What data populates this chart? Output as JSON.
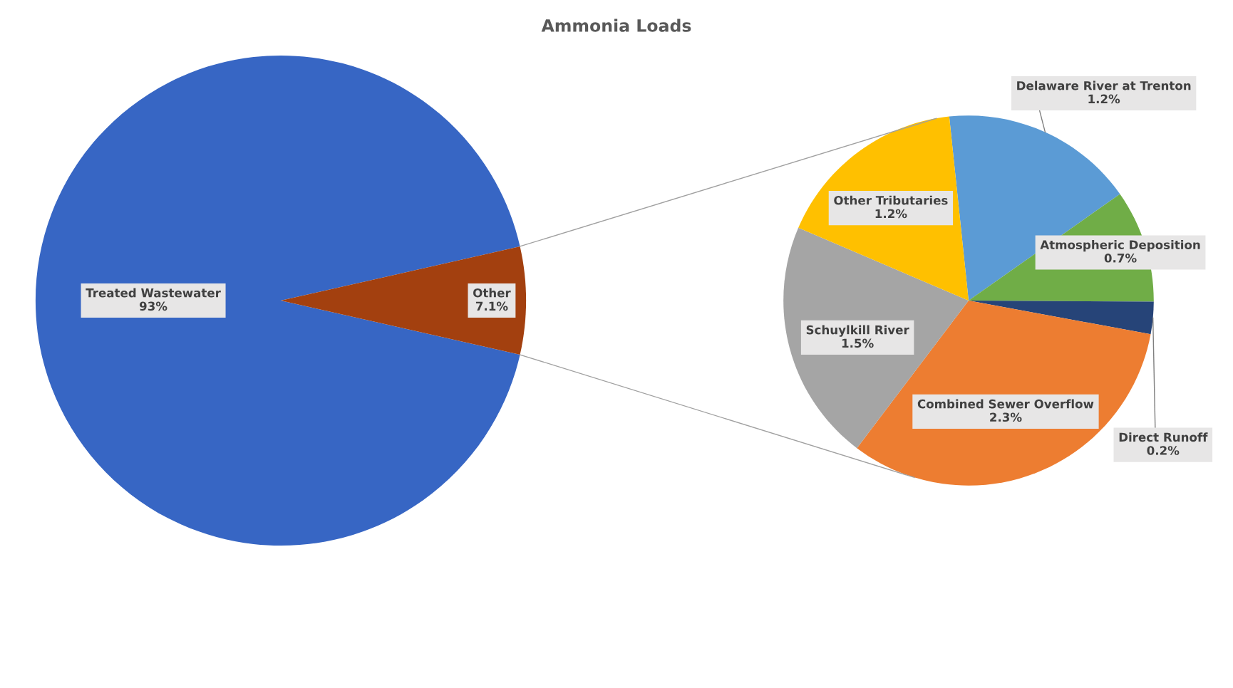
{
  "chart_data": [
    {
      "type": "pie",
      "title": "Ammonia Loads",
      "categories": [
        "Treated Wastewater",
        "Other"
      ],
      "values": [
        93,
        7.1
      ],
      "colors": [
        "#3766c4",
        "#a3400f"
      ],
      "value_labels": [
        "93%",
        "7.1%"
      ],
      "data_labels": true,
      "legend": false
    },
    {
      "type": "pie",
      "categories": [
        "Delaware River at Trenton",
        "Atmospheric Deposition",
        "Direct Runoff",
        "Combined Sewer Overflow",
        "Schuylkill River",
        "Other Tributaries"
      ],
      "values": [
        1.2,
        0.7,
        0.2,
        2.3,
        1.5,
        1.2
      ],
      "colors": [
        "#5b9bd5",
        "#70ad47",
        "#264478",
        "#ed7d31",
        "#a5a5a5",
        "#ffc000"
      ],
      "value_labels": [
        "1.2%",
        "0.7%",
        "0.2%",
        "2.3%",
        "1.5%",
        "1.2%"
      ],
      "data_labels": true,
      "legend": false
    }
  ]
}
